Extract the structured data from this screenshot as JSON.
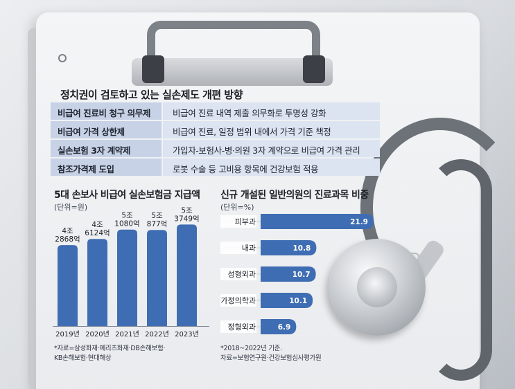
{
  "colors": {
    "bar": "#3f6db3",
    "table_key": "#c7d2e6",
    "table_value": "#dce4f1"
  },
  "reform": {
    "title": "정치권이 검토하고 있는 실손제도 개편 방향",
    "rows": [
      {
        "key": "비급여 진료비 청구 의무제",
        "value": "비급여 진료 내역  제출 의무화로 투명성 강화"
      },
      {
        "key": "비급여 가격 상한제",
        "value": "비급여 진료, 일정 범위 내에서 가격 기준 책정"
      },
      {
        "key": "실손보험 3자 계약제",
        "value": "가입자-보험사-병·의원 3자 계약으로 비급여 가격 관리"
      },
      {
        "key": "참조가격제 도입",
        "value": "로봇 수술 등 고비용 항목에 건강보험 적용"
      }
    ]
  },
  "left_chart": {
    "title": "5대 손보사 비급여 실손보험금 지급액",
    "unit": "(단위=원)",
    "note": [
      "*자료=삼성화재·메리츠화재·DB손해보험·",
      "KB손해보험·현대해상"
    ]
  },
  "right_chart": {
    "title": "신규 개설된 일반의원의 진료과목 비중",
    "unit": "(단위=%)",
    "note": [
      "*2018~2022년 기준.",
      "자료=보험연구원·건강보험심사평가원"
    ]
  },
  "chart_data": [
    {
      "type": "bar",
      "categories": [
        "2019년",
        "2020년",
        "2021년",
        "2022년",
        "2023년"
      ],
      "values": [
        42868,
        46124,
        51080,
        50877,
        53749
      ],
      "value_unit": "억 원",
      "labels": [
        [
          "4조",
          "2868억"
        ],
        [
          "4조",
          "6124억"
        ],
        [
          "5조",
          "1080억"
        ],
        [
          "5조",
          "877억"
        ],
        [
          "5조",
          "3749억"
        ]
      ],
      "title": "5대 손보사 비급여 실손보험금 지급액",
      "ylabel": "(단위=원)",
      "ylim": [
        0,
        55000
      ]
    },
    {
      "type": "bar",
      "orientation": "horizontal",
      "categories": [
        "피부과",
        "내과",
        "성형외과",
        "가정의학과",
        "정형외과"
      ],
      "values": [
        21.9,
        10.8,
        10.7,
        10.1,
        6.9
      ],
      "labels": [
        "21.9",
        "10.8",
        "10.7",
        "10.1",
        "6.9"
      ],
      "title": "신규 개설된 일반의원의 진료과목 비중",
      "ylabel": "(단위=%)",
      "xlim": [
        0,
        21.9
      ]
    }
  ]
}
